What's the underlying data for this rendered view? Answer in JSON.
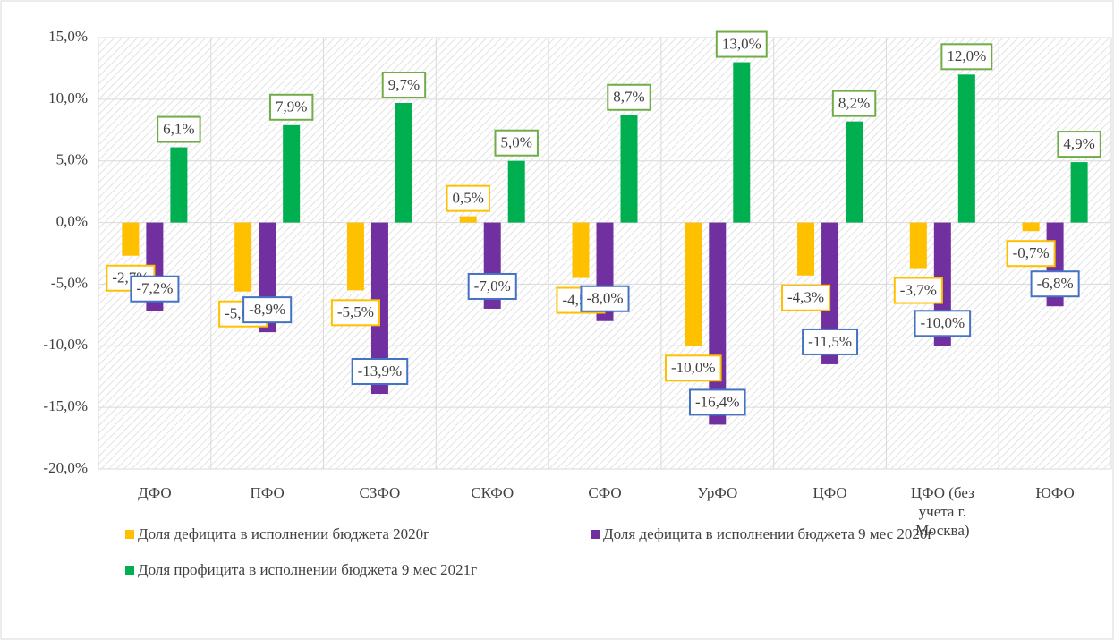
{
  "chart_data": {
    "type": "bar",
    "categories": [
      "ДФО",
      "ПФО",
      "СЗФО",
      "СКФО",
      "СФО",
      "УрФО",
      "ЦФО",
      "ЦФО (без учета г. Москва)",
      "ЮФО"
    ],
    "series": [
      {
        "name": "Доля дефицита в исполнении бюджета 2020г",
        "color": "#ffc000",
        "label_border": "#ffc000",
        "values": [
          -2.7,
          -5.6,
          -5.5,
          0.5,
          -4.5,
          -10.0,
          -4.3,
          -3.7,
          -0.7
        ],
        "value_labels": [
          "-2,7%",
          "-5,6%",
          "-5,5%",
          "0,5%",
          "-4,5%",
          "-10,0%",
          "-4,3%",
          "-3,7%",
          "-0,7%"
        ]
      },
      {
        "name": "Доля дефицита в исполнении бюджета 9 мес 2020г",
        "color": "#7030a0",
        "label_border": "#4472c4",
        "values": [
          -7.2,
          -8.9,
          -13.9,
          -7.0,
          -8.0,
          -16.4,
          -11.5,
          -10.0,
          -6.8
        ],
        "value_labels": [
          "-7,2%",
          "-8,9%",
          "-13,9%",
          "-7,0%",
          "-8,0%",
          "-16,4%",
          "-11,5%",
          "-10,0%",
          "-6,8%"
        ]
      },
      {
        "name": "Доля профицита в исполнении бюджета 9 мес 2021г",
        "color": "#00b050",
        "label_border": "#70ad47",
        "values": [
          6.1,
          7.9,
          9.7,
          5.0,
          8.7,
          13.0,
          8.2,
          12.0,
          4.9
        ],
        "value_labels": [
          "6,1%",
          "7,9%",
          "9,7%",
          "5,0%",
          "8,7%",
          "13,0%",
          "8,2%",
          "12,0%",
          "4,9%"
        ]
      }
    ],
    "ylim": [
      -20,
      15
    ],
    "yticks": [
      {
        "value": -20,
        "label": "-20,0%"
      },
      {
        "value": -15,
        "label": "-15,0%"
      },
      {
        "value": -10,
        "label": "-10,0%"
      },
      {
        "value": -5,
        "label": "-5,0%"
      },
      {
        "value": 0,
        "label": "0,0%"
      },
      {
        "value": 5,
        "label": "5,0%"
      },
      {
        "value": 10,
        "label": "10,0%"
      },
      {
        "value": 15,
        "label": "15,0%"
      }
    ],
    "grid": true
  }
}
